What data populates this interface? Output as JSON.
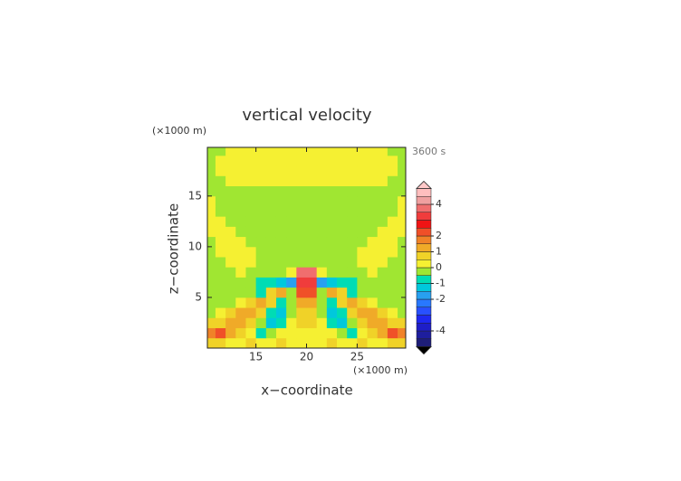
{
  "chart_data": {
    "type": "contour",
    "title": "vertical velocity",
    "time_label": "3600 s",
    "x_label": "x−coordinate",
    "y_label": "z−coordinate",
    "x_unit": "(×1000 m)",
    "y_unit": "(×1000 m)",
    "xlim": [
      10.2,
      29.8
    ],
    "ylim": [
      0,
      19.8
    ],
    "xticks": [
      15,
      20,
      25
    ],
    "yticks": [
      5,
      10,
      15
    ],
    "x": [
      10.5,
      11.5,
      12.5,
      13.5,
      14.5,
      15.5,
      16.5,
      17.5,
      18.5,
      19.5,
      20.5,
      21.5,
      22.5,
      23.5,
      24.5,
      25.5,
      26.5,
      27.5,
      28.5,
      29.5
    ],
    "y": [
      0.5,
      1.5,
      2.5,
      3.5,
      4.5,
      5.5,
      6.5,
      7.5,
      8.5,
      9.5,
      10.5,
      11.5,
      12.5,
      13.5,
      14.5,
      15.5,
      16.5,
      17.5,
      18.5,
      19.5
    ],
    "z": [
      [
        0.6,
        0.6,
        0.2,
        0.2,
        0.6,
        0.2,
        0.2,
        0.6,
        0.2,
        0.2,
        0.2,
        0.2,
        0.6,
        0.2,
        0.2,
        0.6,
        0.2,
        0.2,
        0.6,
        0.6
      ],
      [
        1.6,
        2.1,
        1.2,
        0.6,
        0.2,
        -0.8,
        -0.4,
        0.2,
        0.3,
        0.3,
        0.3,
        0.3,
        0.2,
        -0.4,
        -0.8,
        0.2,
        0.6,
        1.2,
        2.1,
        1.6
      ],
      [
        0.6,
        0.8,
        1.2,
        1.1,
        0.6,
        -0.3,
        -1.2,
        -0.6,
        0.2,
        0.6,
        0.6,
        0.2,
        -0.6,
        -1.2,
        -0.3,
        0.6,
        1.1,
        1.2,
        0.8,
        0.6
      ],
      [
        -0.2,
        0.2,
        0.6,
        1.1,
        1.2,
        0.6,
        -0.6,
        -1.2,
        -0.3,
        0.8,
        0.8,
        -0.3,
        -1.2,
        -0.6,
        0.6,
        1.2,
        1.1,
        0.6,
        0.2,
        -0.2
      ],
      [
        -0.2,
        -0.2,
        -0.2,
        0.2,
        0.6,
        1.2,
        0.6,
        -0.8,
        -0.3,
        1.3,
        1.3,
        -0.3,
        -0.8,
        0.6,
        1.2,
        0.6,
        0.2,
        -0.2,
        -0.2,
        -0.2
      ],
      [
        -0.2,
        -0.2,
        -0.2,
        -0.2,
        -0.2,
        -0.6,
        0.6,
        1.2,
        -0.3,
        2.2,
        2.2,
        -0.3,
        1.2,
        0.6,
        -0.6,
        -0.2,
        -0.2,
        -0.2,
        -0.2,
        -0.2
      ],
      [
        -0.2,
        -0.2,
        -0.2,
        -0.2,
        -0.2,
        -0.6,
        -0.8,
        -1.3,
        -1.8,
        3.2,
        3.2,
        -1.8,
        -1.3,
        -0.8,
        -0.6,
        -0.2,
        -0.2,
        -0.2,
        -0.2,
        -0.2
      ],
      [
        -0.2,
        -0.2,
        -0.2,
        0.2,
        -0.2,
        -0.2,
        -0.2,
        -0.2,
        0.2,
        3.8,
        3.8,
        0.2,
        -0.2,
        -0.2,
        -0.2,
        -0.2,
        0.2,
        -0.2,
        -0.2,
        -0.2
      ],
      [
        -0.2,
        -0.2,
        0.2,
        0.2,
        0.2,
        -0.2,
        -0.2,
        -0.2,
        -0.2,
        -0.2,
        -0.2,
        -0.2,
        -0.2,
        -0.2,
        -0.2,
        0.2,
        0.2,
        0.2,
        -0.2,
        -0.2
      ],
      [
        -0.2,
        0.2,
        0.2,
        0.2,
        0.2,
        -0.2,
        -0.2,
        -0.2,
        -0.2,
        -0.2,
        -0.2,
        -0.2,
        -0.2,
        -0.2,
        -0.2,
        0.2,
        0.2,
        0.2,
        0.2,
        -0.2
      ],
      [
        -0.2,
        0.2,
        0.2,
        0.2,
        -0.2,
        -0.2,
        -0.2,
        -0.2,
        -0.2,
        -0.2,
        -0.2,
        -0.2,
        -0.2,
        -0.2,
        -0.2,
        -0.2,
        0.2,
        0.2,
        0.2,
        -0.2
      ],
      [
        0.2,
        0.2,
        0.2,
        -0.2,
        -0.2,
        -0.2,
        -0.2,
        -0.2,
        -0.2,
        -0.2,
        -0.2,
        -0.2,
        -0.2,
        -0.2,
        -0.2,
        -0.2,
        -0.2,
        0.2,
        0.2,
        0.2
      ],
      [
        0.2,
        0.2,
        -0.2,
        -0.2,
        -0.2,
        -0.2,
        -0.2,
        -0.2,
        -0.2,
        -0.2,
        -0.2,
        -0.2,
        -0.2,
        -0.2,
        -0.2,
        -0.2,
        -0.2,
        -0.2,
        0.2,
        0.2
      ],
      [
        0.2,
        -0.2,
        -0.2,
        -0.2,
        -0.2,
        -0.2,
        -0.2,
        -0.2,
        -0.2,
        -0.2,
        -0.2,
        -0.2,
        -0.2,
        -0.2,
        -0.2,
        -0.2,
        -0.2,
        -0.2,
        -0.2,
        0.2
      ],
      [
        0.2,
        -0.2,
        -0.2,
        -0.2,
        -0.2,
        -0.2,
        -0.2,
        -0.2,
        -0.2,
        -0.2,
        -0.2,
        -0.2,
        -0.2,
        -0.2,
        -0.2,
        -0.2,
        -0.2,
        -0.2,
        -0.2,
        0.2
      ],
      [
        -0.2,
        -0.2,
        -0.2,
        -0.2,
        -0.2,
        -0.2,
        -0.2,
        -0.2,
        -0.2,
        -0.2,
        -0.2,
        -0.2,
        -0.2,
        -0.2,
        -0.2,
        -0.2,
        -0.2,
        -0.2,
        -0.2,
        -0.2
      ],
      [
        -0.2,
        -0.2,
        0.2,
        0.2,
        0.2,
        0.2,
        0.2,
        0.2,
        0.2,
        0.2,
        0.2,
        0.2,
        0.2,
        0.2,
        0.2,
        0.2,
        0.2,
        0.2,
        -0.2,
        -0.2
      ],
      [
        -0.2,
        0.2,
        0.2,
        0.2,
        0.2,
        0.2,
        0.2,
        0.2,
        0.2,
        0.2,
        0.2,
        0.2,
        0.2,
        0.2,
        0.2,
        0.2,
        0.2,
        0.2,
        0.2,
        -0.2
      ],
      [
        -0.2,
        0.2,
        0.2,
        0.2,
        0.2,
        0.2,
        0.2,
        0.2,
        0.2,
        0.2,
        0.2,
        0.2,
        0.2,
        0.2,
        0.2,
        0.2,
        0.2,
        0.2,
        0.2,
        -0.2
      ],
      [
        -0.2,
        -0.2,
        0.2,
        0.2,
        0.2,
        0.2,
        0.2,
        0.2,
        0.2,
        0.2,
        0.2,
        0.2,
        0.2,
        0.2,
        0.2,
        0.2,
        0.2,
        0.2,
        -0.2,
        -0.2
      ]
    ],
    "clevels": [
      -5,
      -4.5,
      -4,
      -3.5,
      -3,
      -2.5,
      -2,
      -1.5,
      -1,
      -0.5,
      0,
      0.5,
      1,
      1.5,
      2,
      2.5,
      3,
      3.5,
      4,
      4.5,
      5
    ],
    "colors": [
      "#1e1e78",
      "#1e1e9e",
      "#1e1ec8",
      "#1e28f0",
      "#2850ff",
      "#2878ff",
      "#28a0f0",
      "#00c8dc",
      "#00dcb4",
      "#a0e632",
      "#f5f032",
      "#f0d228",
      "#f0aa28",
      "#f08228",
      "#f05028",
      "#f01414",
      "#f03c3c",
      "#f06e6e",
      "#f0a0a0",
      "#ffbebe"
    ],
    "under_color": "#000000",
    "over_color": "#ffc8c8",
    "colorbar_ticks": [
      4,
      2,
      1,
      0,
      -1,
      -2,
      -4
    ]
  }
}
